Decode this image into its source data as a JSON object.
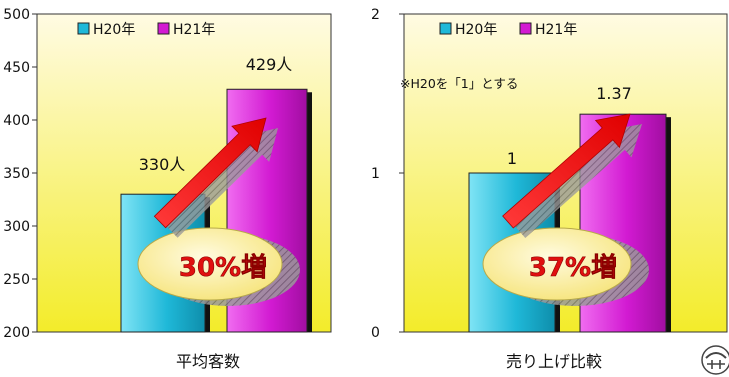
{
  "colors": {
    "h20": "#1fb8d8",
    "h21": "#d21ad2",
    "plot_top": "#fffbe3",
    "plot_bottom": "#f3ec2a",
    "ellipse": "#fff2a0",
    "arrow": "#f01010",
    "percent_text": "#e01010"
  },
  "chart_data": [
    {
      "type": "bar",
      "title": "平均客数",
      "xlabel": "平均客数",
      "ylim": [
        200,
        500
      ],
      "yticks": [
        "200",
        "250",
        "300",
        "350",
        "400",
        "450",
        "500"
      ],
      "legend": {
        "placement": "top-left"
      },
      "series": [
        {
          "name": "H20年",
          "value": 330,
          "label": "330人",
          "color_key": "h20"
        },
        {
          "name": "H21年",
          "value": 429,
          "label": "429人",
          "color_key": "h21"
        }
      ],
      "annotation": "30%増"
    },
    {
      "type": "bar",
      "title": "売り上げ比較",
      "xlabel": "売り上げ比較",
      "ylim": [
        0,
        2
      ],
      "yticks": [
        "0",
        "1",
        "2"
      ],
      "legend": {
        "placement": "top-left"
      },
      "note": "※H20を「1」とする",
      "series": [
        {
          "name": "H20年",
          "value": 1,
          "label": "1",
          "color_key": "h20"
        },
        {
          "name": "H21年",
          "value": 1.37,
          "label": "1.37",
          "color_key": "h21"
        }
      ],
      "annotation": "37%増"
    }
  ]
}
